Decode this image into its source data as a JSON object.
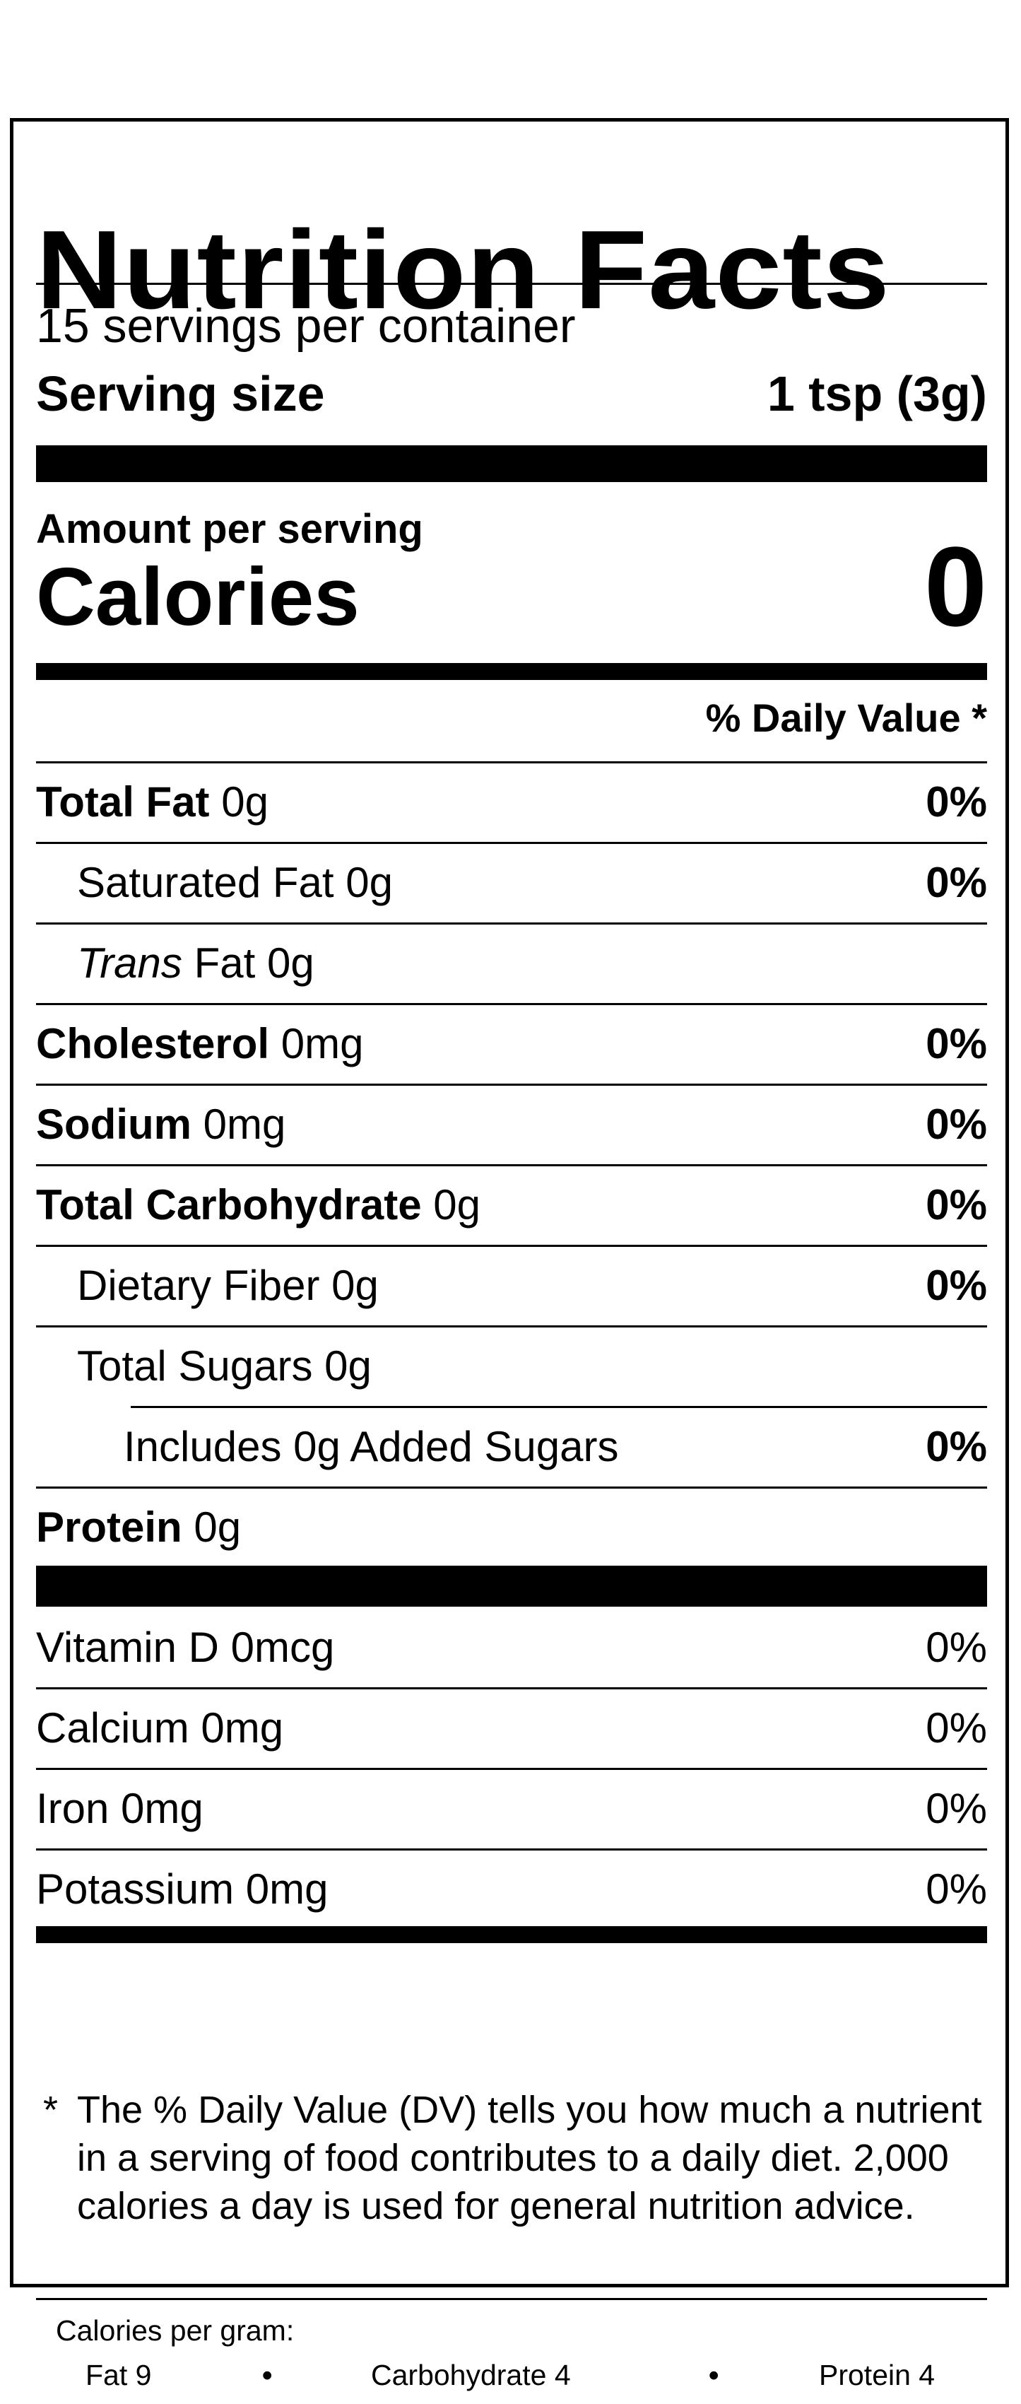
{
  "title": "Nutrition Facts",
  "servings_per_container": "15 servings per container",
  "serving_size": {
    "label": "Serving size",
    "value": "1 tsp (3g)"
  },
  "amount_per_serving": "Amount per serving",
  "calories": {
    "label": "Calories",
    "value": "0"
  },
  "daily_value_header": "% Daily Value *",
  "nutrients": [
    {
      "name": "Total Fat",
      "amount": " 0g",
      "dv": "0%"
    },
    {
      "name": "Saturated Fat",
      "amount": " 0g",
      "dv": "0%"
    },
    {
      "name": "Trans",
      "amount": " Fat 0g",
      "dv": ""
    },
    {
      "name": "Cholesterol",
      "amount": " 0mg",
      "dv": "0%"
    },
    {
      "name": "Sodium",
      "amount": " 0mg",
      "dv": "0%"
    },
    {
      "name": "Total Carbohydrate",
      "amount": " 0g",
      "dv": "0%"
    },
    {
      "name": "Dietary Fiber",
      "amount": " 0g",
      "dv": "0%"
    },
    {
      "name": "Total Sugars",
      "amount": " 0g",
      "dv": ""
    },
    {
      "name": "Includes 0g Added Sugars",
      "amount": "",
      "dv": "0%"
    },
    {
      "name": "Protein",
      "amount": " 0g",
      "dv": ""
    }
  ],
  "vitamins": [
    {
      "name": "Vitamin D 0mcg",
      "dv": "0%"
    },
    {
      "name": "Calcium 0mg",
      "dv": "0%"
    },
    {
      "name": "Iron 0mg",
      "dv": "0%"
    },
    {
      "name": "Potassium 0mg",
      "dv": "0%"
    }
  ],
  "footnote": {
    "star": "*",
    "text": "The % Daily Value (DV) tells you how much a nutrient in a serving of food contributes to a daily diet. 2,000 calories a day is used for general nutrition advice."
  },
  "calories_per_gram": {
    "label": "Calories per gram:",
    "fat": "Fat 9",
    "carbohydrate": "Carbohydrate 4",
    "protein": "Protein 4",
    "bullet": "•"
  }
}
